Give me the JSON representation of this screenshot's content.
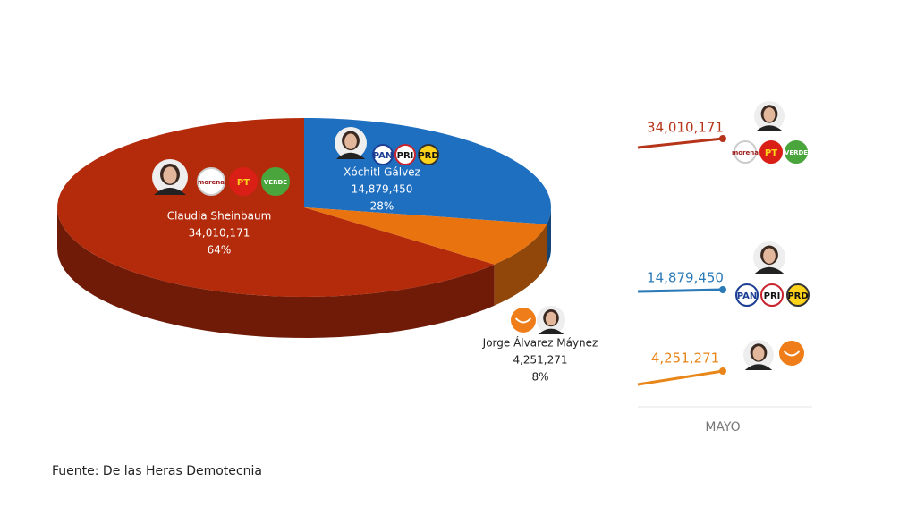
{
  "chart_data": [
    {
      "type": "pie",
      "categories": [
        "Claudia Sheinbaum",
        "Xóchitl Gálvez",
        "Jorge Álvarez Máynez"
      ],
      "values": [
        34010171,
        14879450,
        4251271
      ],
      "value_labels": [
        "34,010,171",
        "14,879,450",
        "4,251,271"
      ],
      "percent_labels": [
        "64%",
        "28%",
        "8%"
      ],
      "colors": [
        "#b32b0b",
        "#1f6fc0",
        "#e8730f"
      ],
      "parties": [
        [
          "morena",
          "PT",
          "VERDE"
        ],
        [
          "PAN",
          "PRI",
          "PRD"
        ]
      ]
    },
    {
      "type": "line",
      "categories": [
        "MAYO"
      ],
      "series": [
        {
          "color": "#b5341a",
          "values": [
            34010171
          ],
          "value_labels": [
            "34,010,171"
          ]
        },
        {
          "color": "#2a7ab8",
          "values": [
            14879450
          ],
          "value_labels": [
            "14,879,450"
          ]
        },
        {
          "color": "#e8861a",
          "values": [
            4251271
          ],
          "value_labels": [
            "4,251,271"
          ]
        }
      ]
    }
  ],
  "source": "Fuente: De las Heras Demotecnia"
}
